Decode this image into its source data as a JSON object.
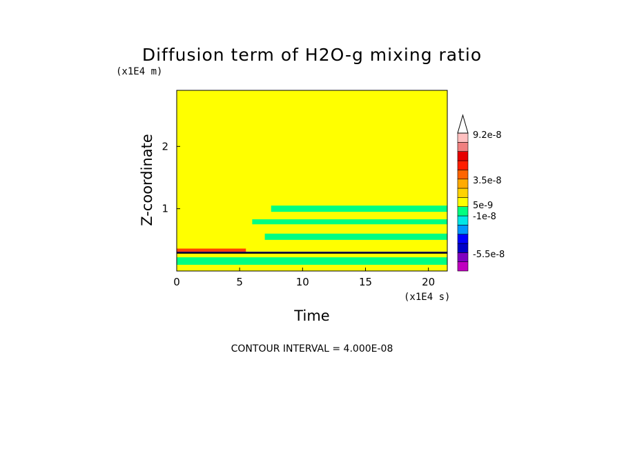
{
  "chart_data": {
    "type": "heatmap",
    "title": "Diffusion term of H2O-g mixing ratio",
    "xlabel": "Time",
    "ylabel": "Z-coordinate",
    "x_unit": "(x1E4 s)",
    "y_unit": "(x1E4 m)",
    "xlim": [
      0,
      21.5
    ],
    "ylim": [
      0,
      2.9
    ],
    "x_ticks": [
      "0",
      "5",
      "10",
      "15",
      "20"
    ],
    "y_ticks": [
      "1",
      "2"
    ],
    "footer": "CONTOUR INTERVAL = 4.000E-08",
    "background_color": "#ffff00",
    "colorbar": {
      "labels": [
        "9.2e-8",
        "3.5e-8",
        "5e-9",
        "-1e-8",
        "-5.5e-8"
      ],
      "colors_bottom_to_top": [
        "#c000c0",
        "#8000c0",
        "#0000c8",
        "#0000ff",
        "#0096ff",
        "#00e6e6",
        "#00ff80",
        "#ffff00",
        "#ffd200",
        "#ffaa00",
        "#ff6400",
        "#ff1e00",
        "#e60000",
        "#f08080",
        "#ffc0c0"
      ]
    },
    "regions": [
      {
        "name": "positive-layer",
        "color": "#ff4000",
        "x": [
          0,
          5.5
        ],
        "y": [
          0.3,
          0.36
        ]
      },
      {
        "name": "near-surface-layer",
        "color": "#0000c8",
        "x": [
          0,
          21.5
        ],
        "y": [
          0.28,
          0.31
        ]
      },
      {
        "name": "green-band-1",
        "color": "#00ff80",
        "x": [
          7.5,
          21.5
        ],
        "y": [
          0.95,
          1.05
        ]
      },
      {
        "name": "green-band-2",
        "color": "#00ff80",
        "x": [
          6,
          21.5
        ],
        "y": [
          0.75,
          0.83
        ]
      },
      {
        "name": "green-band-3",
        "color": "#00ff80",
        "x": [
          7,
          21.5
        ],
        "y": [
          0.5,
          0.6
        ]
      },
      {
        "name": "green-band-4",
        "color": "#00ff80",
        "x": [
          0,
          21.5
        ],
        "y": [
          0.1,
          0.22
        ]
      }
    ]
  }
}
